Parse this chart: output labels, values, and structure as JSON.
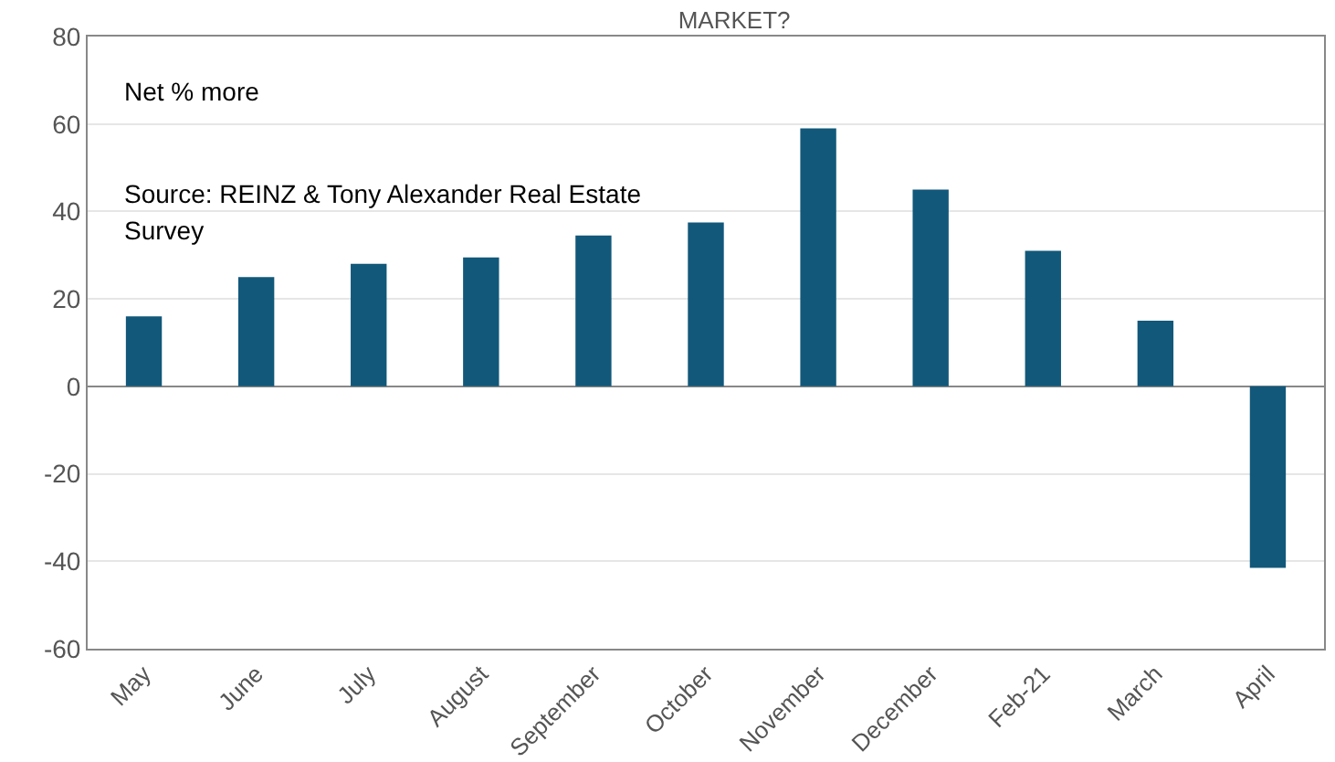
{
  "chart_data": {
    "type": "bar",
    "title": "MARKET?",
    "categories": [
      "May",
      "June",
      "July",
      "August",
      "September",
      "October",
      "November",
      "December",
      "Feb-21",
      "March",
      "April"
    ],
    "values": [
      16,
      25,
      28,
      29.5,
      34.5,
      37.5,
      59,
      45,
      31,
      15,
      -41.5
    ],
    "color": "#12587a",
    "ylim": [
      -60,
      80
    ],
    "yticks": [
      -60,
      -40,
      -20,
      0,
      20,
      40,
      60,
      80
    ],
    "grid": "y",
    "annotations": [
      "Net % more",
      "Source: REINZ & Tony Alexander Real Estate Survey"
    ]
  }
}
